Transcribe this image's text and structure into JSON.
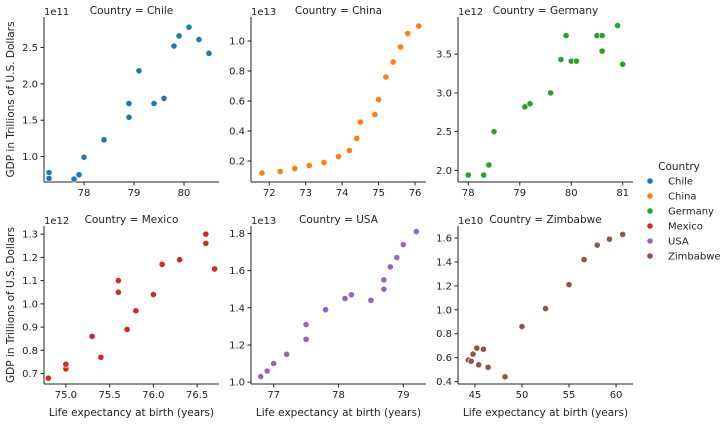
{
  "chart_data": {
    "type": "scatter",
    "xlabel": "Life expectancy at birth (years)",
    "ylabel": "GDP in Trillions of U.S. Dollars",
    "legend": {
      "title": "Country",
      "placement": "right"
    },
    "grid": false,
    "facets": [
      {
        "title": "Country = Chile",
        "series": "Chile",
        "color": "#1f77b4",
        "xlim": [
          77.2,
          80.7
        ],
        "ylim": [
          0.65,
          2.92
        ],
        "xticks": [
          78,
          79,
          80
        ],
        "yticks": [
          1.0,
          1.5,
          2.0,
          2.5
        ],
        "ytick_labels": [
          "1.0",
          "1.5",
          "2.0",
          "2.5"
        ],
        "offset": "1e11",
        "x": [
          77.3,
          77.3,
          77.8,
          77.9,
          78.0,
          78.4,
          78.9,
          78.9,
          79.1,
          79.4,
          79.6,
          79.8,
          79.9,
          80.1,
          80.3,
          80.5
        ],
        "y": [
          0.7,
          0.78,
          0.69,
          0.75,
          0.99,
          1.23,
          1.54,
          1.73,
          2.18,
          1.73,
          1.8,
          2.52,
          2.66,
          2.78,
          2.61,
          2.42
        ]
      },
      {
        "title": "Country = China",
        "series": "China",
        "color": "#ff7f0e",
        "xlim": [
          71.5,
          76.3
        ],
        "ylim": [
          0.06,
          1.16
        ],
        "xticks": [
          72,
          73,
          74,
          75,
          76
        ],
        "yticks": [
          0.2,
          0.4,
          0.6,
          0.8,
          1.0
        ],
        "ytick_labels": [
          "0.2",
          "0.4",
          "0.6",
          "0.8",
          "1.0"
        ],
        "offset": "1e13",
        "x": [
          71.8,
          72.3,
          72.7,
          73.1,
          73.5,
          73.9,
          74.2,
          74.4,
          74.5,
          74.9,
          75.0,
          75.2,
          75.4,
          75.6,
          75.8,
          76.1
        ],
        "y": [
          0.12,
          0.13,
          0.15,
          0.17,
          0.19,
          0.23,
          0.27,
          0.35,
          0.46,
          0.51,
          0.61,
          0.76,
          0.86,
          0.96,
          1.05,
          1.1
        ]
      },
      {
        "title": "Country = Germany",
        "series": "Germany",
        "color": "#2ca02c",
        "xlim": [
          77.8,
          81.2
        ],
        "ylim": [
          1.85,
          3.98
        ],
        "xticks": [
          78,
          79,
          80,
          81
        ],
        "yticks": [
          2.0,
          2.5,
          3.0,
          3.5
        ],
        "ytick_labels": [
          "2.0",
          "2.5",
          "3.0",
          "3.5"
        ],
        "offset": "1e12",
        "x": [
          78.0,
          78.3,
          78.4,
          78.5,
          79.1,
          79.2,
          79.6,
          79.8,
          79.9,
          80.0,
          80.1,
          80.5,
          80.6,
          80.6,
          80.9,
          81.0
        ],
        "y": [
          1.94,
          1.94,
          2.07,
          2.5,
          2.82,
          2.86,
          3.0,
          3.43,
          3.74,
          3.41,
          3.41,
          3.74,
          3.74,
          3.54,
          3.87,
          3.37
        ]
      },
      {
        "title": "Country = Mexico",
        "series": "Mexico",
        "color": "#d62728",
        "xlim": [
          74.75,
          76.75
        ],
        "ylim": [
          0.655,
          1.335
        ],
        "xticks": [
          75.0,
          75.5,
          76.0,
          76.5
        ],
        "xtick_labels": [
          "75.0",
          "75.5",
          "76.0",
          "76.5"
        ],
        "yticks": [
          0.7,
          0.8,
          0.9,
          1.0,
          1.1,
          1.2,
          1.3
        ],
        "ytick_labels": [
          "0.7",
          "0.8",
          "0.9",
          "1.0",
          "1.1",
          "1.2",
          "1.3"
        ],
        "offset": "1e12",
        "x": [
          74.8,
          75.0,
          75.0,
          75.0,
          75.3,
          75.4,
          75.6,
          75.6,
          75.7,
          75.8,
          76.0,
          76.1,
          76.3,
          76.6,
          76.6,
          76.7
        ],
        "y": [
          0.68,
          0.72,
          0.72,
          0.74,
          0.86,
          0.77,
          1.05,
          1.1,
          0.89,
          0.97,
          1.04,
          1.17,
          1.19,
          1.26,
          1.3,
          1.15
        ]
      },
      {
        "title": "Country = USA",
        "series": "USA",
        "color": "#9467bd",
        "xlim": [
          76.65,
          79.35
        ],
        "ylim": [
          0.99,
          1.84
        ],
        "xticks": [
          77,
          78,
          79
        ],
        "yticks": [
          1.0,
          1.2,
          1.4,
          1.6,
          1.8
        ],
        "ytick_labels": [
          "1.0",
          "1.2",
          "1.4",
          "1.6",
          "1.8"
        ],
        "offset": "1e13",
        "x": [
          76.8,
          76.9,
          77.0,
          77.2,
          77.5,
          77.5,
          77.8,
          78.1,
          78.2,
          78.5,
          78.7,
          78.7,
          78.8,
          78.9,
          79.0,
          79.2
        ],
        "y": [
          1.03,
          1.06,
          1.1,
          1.15,
          1.23,
          1.31,
          1.39,
          1.45,
          1.47,
          1.44,
          1.5,
          1.55,
          1.62,
          1.67,
          1.74,
          1.81
        ]
      },
      {
        "title": "Country = Zimbabwe",
        "series": "Zimbabwe",
        "color": "#8c564b",
        "xlim": [
          43.2,
          61.8
        ],
        "ylim": [
          0.38,
          1.7
        ],
        "xticks": [
          45,
          50,
          55,
          60
        ],
        "yticks": [
          0.4,
          0.6,
          0.8,
          1.0,
          1.2,
          1.4,
          1.6
        ],
        "ytick_labels": [
          "0.4",
          "0.6",
          "0.8",
          "1.0",
          "1.2",
          "1.4",
          "1.6"
        ],
        "offset": "1e10",
        "x": [
          44.3,
          44.6,
          44.8,
          45.2,
          45.4,
          45.9,
          46.4,
          48.2,
          50.0,
          52.5,
          55.0,
          56.6,
          58.0,
          59.3,
          60.7
        ],
        "y": [
          0.58,
          0.57,
          0.63,
          0.68,
          0.54,
          0.67,
          0.52,
          0.44,
          0.86,
          1.01,
          1.21,
          1.42,
          1.54,
          1.59,
          1.63
        ]
      }
    ]
  }
}
